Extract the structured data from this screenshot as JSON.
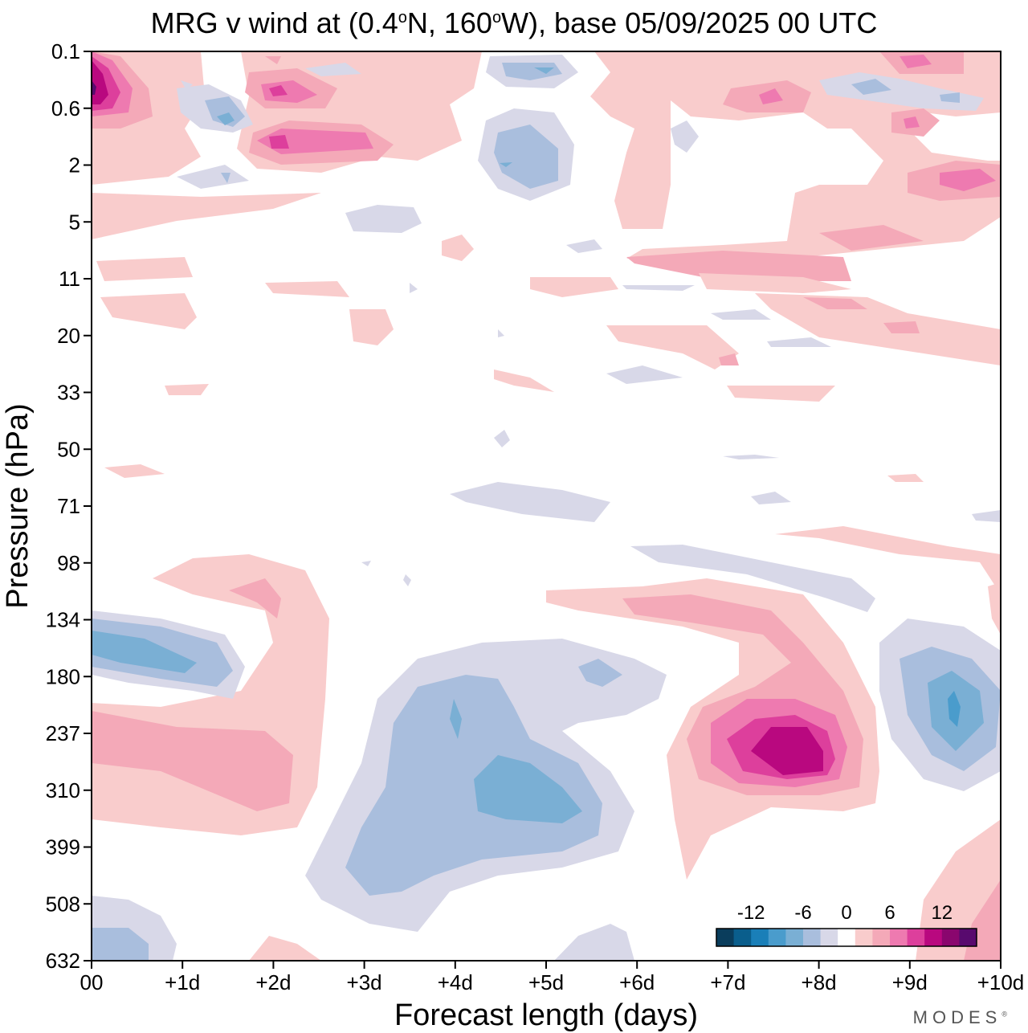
{
  "title": {
    "prefix": "MRG v wind at (0.4",
    "deg1": "o",
    "mid": "N, 160",
    "deg2": "o",
    "suffix": "W),  base 05/09/2025  00 UTC"
  },
  "logo": {
    "text": "MODES",
    "mark": "®"
  },
  "chart_data": {
    "type": "heatmap",
    "xlabel": "Forecast length (days)",
    "ylabel": "Pressure (hPa)",
    "x_ticks": [
      "00",
      "+1d",
      "+2d",
      "+3d",
      "+4d",
      "+5d",
      "+6d",
      "+7d",
      "+8d",
      "+9d",
      "+10d"
    ],
    "xlim": [
      0,
      10
    ],
    "y_ticks": [
      "0.1",
      "0.6",
      "2",
      "5",
      "11",
      "20",
      "33",
      "50",
      "71",
      "98",
      "134",
      "180",
      "237",
      "310",
      "399",
      "508",
      "632"
    ],
    "y_axis_order": "top-to-bottom",
    "colorbar": {
      "tick_labels": [
        "-12",
        "-6",
        "0",
        "6",
        "12"
      ],
      "levels": [
        -15,
        -12,
        -10,
        -8,
        -6,
        -4,
        -2,
        2,
        4,
        6,
        8,
        10,
        12,
        15
      ],
      "colors": [
        "#0a3d5c",
        "#0a5e8c",
        "#1a7fb8",
        "#4a9ccc",
        "#7aafd4",
        "#a9bedd",
        "#d8d8e8",
        "#ffffff",
        "#f9cccc",
        "#f4a9b8",
        "#ee7ab0",
        "#dd3f9c",
        "#b9087f",
        "#8a066e",
        "#580a6e"
      ],
      "placement": "bottom-right"
    },
    "features": [
      {
        "name": "negative anomaly",
        "day": 0.8,
        "pressure": 170,
        "peak_value": -8
      },
      {
        "name": "positive anomaly",
        "day": 1.8,
        "pressure": 240,
        "peak_value": 6
      },
      {
        "name": "negative anomaly",
        "day": 4.5,
        "pressure": 300,
        "peak_value": -8
      },
      {
        "name": "positive anomaly",
        "day": 7.6,
        "pressure": 240,
        "peak_value": 12
      },
      {
        "name": "negative anomaly",
        "day": 9.5,
        "pressure": 210,
        "peak_value": -10
      },
      {
        "name": "positive anomaly",
        "day": 0.1,
        "pressure": 0.5,
        "peak_value": 14
      },
      {
        "name": "positive anomaly",
        "day": 2.1,
        "pressure": 1.5,
        "peak_value": 10
      },
      {
        "name": "positive anomaly",
        "day": 9.7,
        "pressure": 2.5,
        "peak_value": 8
      },
      {
        "name": "positive anomaly",
        "day": 9.9,
        "pressure": 560,
        "peak_value": 6
      }
    ]
  }
}
